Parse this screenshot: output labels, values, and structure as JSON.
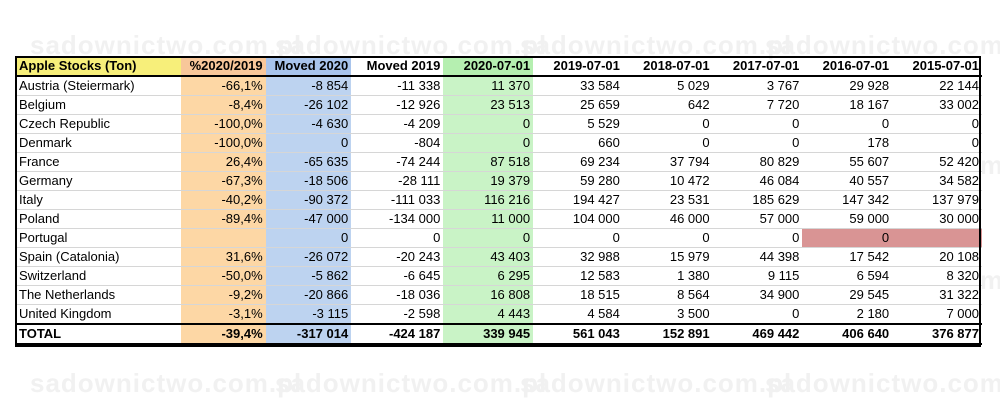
{
  "watermark": "sadownictwo.com.pl",
  "table": {
    "headers": [
      "Apple Stocks (Ton)",
      "%2020/2019",
      "Moved 2020",
      "Moved 2019",
      "2020-07-01",
      "2019-07-01",
      "2018-07-01",
      "2017-07-01",
      "2016-07-01",
      "2015-07-01"
    ],
    "rows": [
      [
        "Austria (Steiermark)",
        "-66,1%",
        "-8 854",
        "-11 338",
        "11 370",
        "33 584",
        "5 029",
        "3 767",
        "29 928",
        "22 144"
      ],
      [
        "Belgium",
        "-8,4%",
        "-26 102",
        "-12 926",
        "23 513",
        "25 659",
        "642",
        "7 720",
        "18 167",
        "33 002"
      ],
      [
        "Czech Republic",
        "-100,0%",
        "-4 630",
        "-4 209",
        "0",
        "5 529",
        "0",
        "0",
        "0",
        "0"
      ],
      [
        "Denmark",
        "-100,0%",
        "0",
        "-804",
        "0",
        "660",
        "0",
        "0",
        "178",
        "0"
      ],
      [
        "France",
        "26,4%",
        "-65 635",
        "-74 244",
        "87 518",
        "69 234",
        "37 794",
        "80 829",
        "55 607",
        "52 420"
      ],
      [
        "Germany",
        "-67,3%",
        "-18 506",
        "-28 111",
        "19 379",
        "59 280",
        "10 472",
        "46 084",
        "40 557",
        "34 582"
      ],
      [
        "Italy",
        "-40,2%",
        "-90 372",
        "-111 033",
        "116 216",
        "194 427",
        "23 531",
        "185 629",
        "147 342",
        "137 979"
      ],
      [
        "Poland",
        "-89,4%",
        "-47 000",
        "-134 000",
        "11 000",
        "104 000",
        "46 000",
        "57 000",
        "59 000",
        "30 000"
      ],
      [
        "Portugal",
        "",
        "0",
        "0",
        "0",
        "0",
        "0",
        "0",
        "0",
        ""
      ],
      [
        "Spain (Catalonia)",
        "31,6%",
        "-26 072",
        "-20 243",
        "43 403",
        "32 988",
        "15 979",
        "44 398",
        "17 542",
        "20 108"
      ],
      [
        "Switzerland",
        "-50,0%",
        "-5 862",
        "-6 645",
        "6 295",
        "12 583",
        "1 380",
        "9 115",
        "6 594",
        "8 320"
      ],
      [
        "The Netherlands",
        "-9,2%",
        "-20 866",
        "-18 036",
        "16 808",
        "18 515",
        "8 564",
        "34 900",
        "29 545",
        "31 322"
      ],
      [
        "United Kingdom",
        "-3,1%",
        "-3 115",
        "-2 598",
        "4 443",
        "4 584",
        "3 500",
        "0",
        "2 180",
        "7 000"
      ]
    ],
    "total": [
      "TOTAL",
      "-39,4%",
      "-317 014",
      "-424 187",
      "339 945",
      "561 043",
      "152 891",
      "469 442",
      "406 640",
      "376 877"
    ],
    "highlight_colors": {
      "percent": "#fdd7a5",
      "moved_2020": "#bdd3f0",
      "date_2020": "#c9f3c6",
      "title_cell": "#f7ef7a",
      "missing_data": "#d99494"
    }
  }
}
